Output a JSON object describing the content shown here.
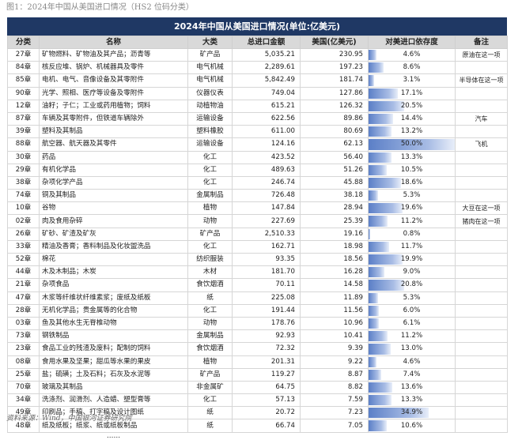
{
  "caption": "图1：2024年中国从美国进口情况（HS2 位码分类）",
  "table_title": "2024年中国从美国进口情况(单位:亿美元)",
  "headers": [
    "分类",
    "名称",
    "大类",
    "总进口金额",
    "美国(亿美元)",
    "对美进口依存度",
    "备注"
  ],
  "rows": [
    {
      "code": "27章",
      "name": "矿物燃料、矿物油及其产品；沥青等",
      "cat": "矿产品",
      "total": "5,035.21",
      "us": "230.95",
      "dep": "4.6%",
      "note": "原油在这一项",
      "pct": 4.6
    },
    {
      "code": "84章",
      "name": "核反应堆、锅炉、机械器具及零件",
      "cat": "电气机械",
      "total": "2,289.61",
      "us": "197.23",
      "dep": "8.6%",
      "note": "",
      "pct": 8.6
    },
    {
      "code": "85章",
      "name": "电机、电气、音像设备及其零附件",
      "cat": "电气机械",
      "total": "5,842.49",
      "us": "181.74",
      "dep": "3.1%",
      "note": "半导体在这一项",
      "pct": 3.1
    },
    {
      "code": "90章",
      "name": "光学、照相、医疗等设备及零附件",
      "cat": "仪器仪表",
      "total": "749.04",
      "us": "127.86",
      "dep": "17.1%",
      "note": "",
      "pct": 17.1
    },
    {
      "code": "12章",
      "name": "油籽；子仁；工业或药用植物；饲料",
      "cat": "动植物油",
      "total": "615.21",
      "us": "126.32",
      "dep": "20.5%",
      "note": "",
      "pct": 20.5
    },
    {
      "code": "87章",
      "name": "车辆及其零附件，但铁道车辆除外",
      "cat": "运输设备",
      "total": "622.56",
      "us": "89.86",
      "dep": "14.4%",
      "note": "汽车",
      "pct": 14.4
    },
    {
      "code": "39章",
      "name": "塑料及其制品",
      "cat": "塑料橡胶",
      "total": "611.00",
      "us": "80.69",
      "dep": "13.2%",
      "note": "",
      "pct": 13.2
    },
    {
      "code": "88章",
      "name": "航空器、航天器及其零件",
      "cat": "运输设备",
      "total": "124.16",
      "us": "62.13",
      "dep": "50.0%",
      "note": "飞机",
      "pct": 50.0
    },
    {
      "code": "30章",
      "name": "药品",
      "cat": "化工",
      "total": "423.52",
      "us": "56.40",
      "dep": "13.3%",
      "note": "",
      "pct": 13.3
    },
    {
      "code": "29章",
      "name": "有机化学品",
      "cat": "化工",
      "total": "489.63",
      "us": "51.26",
      "dep": "10.5%",
      "note": "",
      "pct": 10.5
    },
    {
      "code": "38章",
      "name": "杂项化学产品",
      "cat": "化工",
      "total": "246.74",
      "us": "45.88",
      "dep": "18.6%",
      "note": "",
      "pct": 18.6
    },
    {
      "code": "74章",
      "name": "铜及其制品",
      "cat": "金属制品",
      "total": "726.48",
      "us": "38.18",
      "dep": "5.3%",
      "note": "",
      "pct": 5.3
    },
    {
      "code": "10章",
      "name": "谷物",
      "cat": "植物",
      "total": "147.84",
      "us": "28.94",
      "dep": "19.6%",
      "note": "大豆在这一项",
      "pct": 19.6
    },
    {
      "code": "02章",
      "name": "肉及食用杂碎",
      "cat": "动物",
      "total": "227.69",
      "us": "25.39",
      "dep": "11.2%",
      "note": "猪肉在这一项",
      "pct": 11.2
    },
    {
      "code": "26章",
      "name": "矿砂、矿渣及矿灰",
      "cat": "矿产品",
      "total": "2,510.33",
      "us": "19.16",
      "dep": "0.8%",
      "note": "",
      "pct": 0.8
    },
    {
      "code": "33章",
      "name": "精油及香膏；香料制品及化妆盥洗品",
      "cat": "化工",
      "total": "162.71",
      "us": "18.98",
      "dep": "11.7%",
      "note": "",
      "pct": 11.7
    },
    {
      "code": "52章",
      "name": "棉花",
      "cat": "纺织服装",
      "total": "93.35",
      "us": "18.56",
      "dep": "19.9%",
      "note": "",
      "pct": 19.9
    },
    {
      "code": "44章",
      "name": "木及木制品；木炭",
      "cat": "木材",
      "total": "181.70",
      "us": "16.28",
      "dep": "9.0%",
      "note": "",
      "pct": 9.0
    },
    {
      "code": "21章",
      "name": "杂项食品",
      "cat": "食饮烟酒",
      "total": "70.11",
      "us": "14.58",
      "dep": "20.8%",
      "note": "",
      "pct": 20.8
    },
    {
      "code": "47章",
      "name": "木浆等纤维状纤维素浆；废纸及纸板",
      "cat": "纸",
      "total": "225.08",
      "us": "11.89",
      "dep": "5.3%",
      "note": "",
      "pct": 5.3
    },
    {
      "code": "28章",
      "name": "无机化学品；贵金属等的化合物",
      "cat": "化工",
      "total": "191.44",
      "us": "11.56",
      "dep": "6.0%",
      "note": "",
      "pct": 6.0
    },
    {
      "code": "03章",
      "name": "鱼及其他水生无脊椎动物",
      "cat": "动物",
      "total": "178.76",
      "us": "10.96",
      "dep": "6.1%",
      "note": "",
      "pct": 6.1
    },
    {
      "code": "73章",
      "name": "钢铁制品",
      "cat": "金属制品",
      "total": "92.93",
      "us": "10.41",
      "dep": "11.2%",
      "note": "",
      "pct": 11.2
    },
    {
      "code": "23章",
      "name": "食品工业的残渣及废料；配制的饲料",
      "cat": "食饮烟酒",
      "total": "72.32",
      "us": "9.39",
      "dep": "13.0%",
      "note": "",
      "pct": 13.0
    },
    {
      "code": "08章",
      "name": "食用水果及坚果；甜瓜等水果的果皮",
      "cat": "植物",
      "total": "201.31",
      "us": "9.22",
      "dep": "4.6%",
      "note": "",
      "pct": 4.6
    },
    {
      "code": "25章",
      "name": "盐；硫磺；土及石料；石灰及水泥等",
      "cat": "矿产品",
      "total": "119.27",
      "us": "8.87",
      "dep": "7.4%",
      "note": "",
      "pct": 7.4
    },
    {
      "code": "70章",
      "name": "玻璃及其制品",
      "cat": "非金属矿",
      "total": "64.75",
      "us": "8.82",
      "dep": "13.6%",
      "note": "",
      "pct": 13.6
    },
    {
      "code": "34章",
      "name": "洗涤剂、润滑剂、人造蜡、塑型膏等",
      "cat": "化工",
      "total": "57.13",
      "us": "7.59",
      "dep": "13.3%",
      "note": "",
      "pct": 13.3
    },
    {
      "code": "49章",
      "name": "印刷品；手稿、打字稿及设计图纸",
      "cat": "纸",
      "total": "20.72",
      "us": "7.23",
      "dep": "34.9%",
      "note": "",
      "pct": 34.9
    },
    {
      "code": "48章",
      "name": "纸及纸板；纸浆、纸或纸板制品",
      "cat": "纸",
      "total": "66.74",
      "us": "7.05",
      "dep": "10.6%",
      "note": "",
      "pct": 10.6
    }
  ],
  "ellipsis": "……",
  "source": "资料来源：Wind，中国银河证券研究院"
}
